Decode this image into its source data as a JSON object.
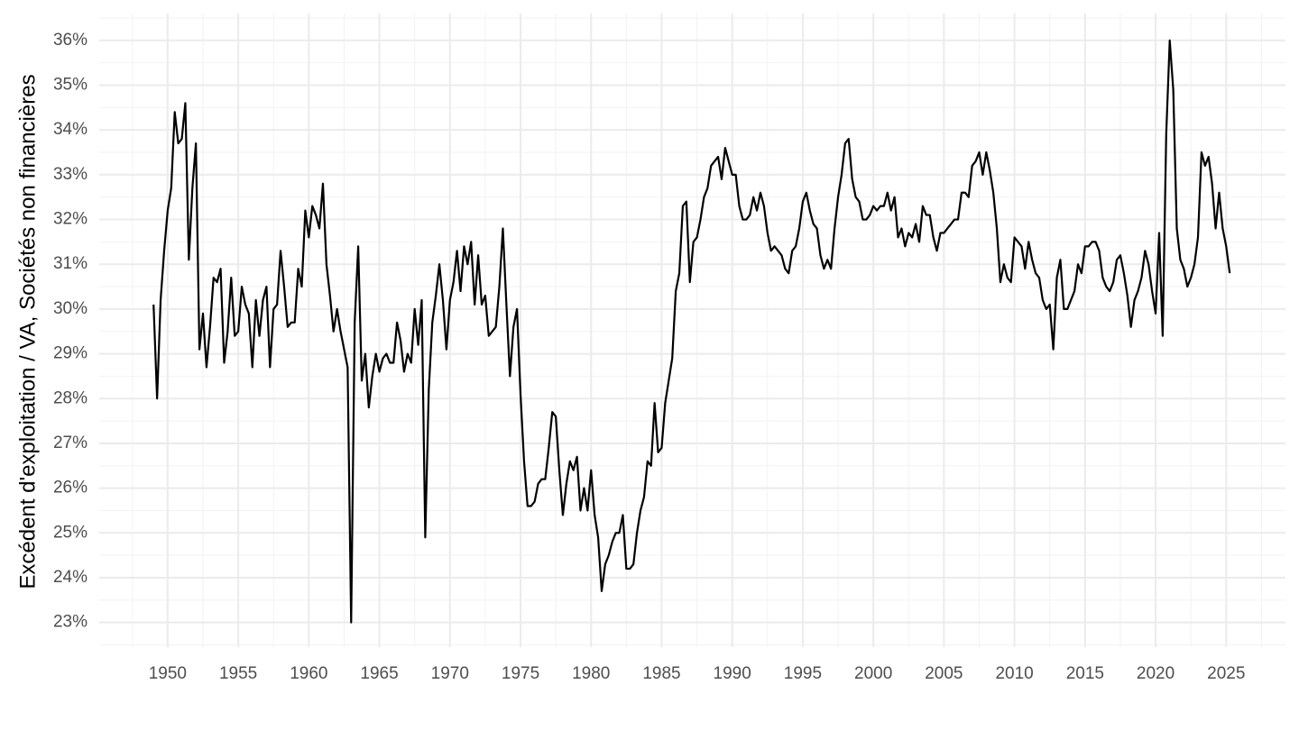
{
  "chart_data": {
    "type": "line",
    "ylabel": "Excédent d'exploitation / VA, Sociétés non financières",
    "x": [
      1949,
      1949.25,
      1949.5,
      1949.75,
      1950,
      1950.25,
      1950.5,
      1950.75,
      1951,
      1951.25,
      1951.5,
      1951.75,
      1952,
      1952.25,
      1952.5,
      1952.75,
      1953,
      1953.25,
      1953.5,
      1953.75,
      1954,
      1954.25,
      1954.5,
      1954.75,
      1955,
      1955.25,
      1955.5,
      1955.75,
      1956,
      1956.25,
      1956.5,
      1956.75,
      1957,
      1957.25,
      1957.5,
      1957.75,
      1958,
      1958.25,
      1958.5,
      1958.75,
      1959,
      1959.25,
      1959.5,
      1959.75,
      1960,
      1960.25,
      1960.5,
      1960.75,
      1961,
      1961.25,
      1961.5,
      1961.75,
      1962,
      1962.25,
      1962.5,
      1962.75,
      1963,
      1963.25,
      1963.5,
      1963.75,
      1964,
      1964.25,
      1964.5,
      1964.75,
      1965,
      1965.25,
      1965.5,
      1965.75,
      1966,
      1966.25,
      1966.5,
      1966.75,
      1967,
      1967.25,
      1967.5,
      1967.75,
      1968,
      1968.25,
      1968.5,
      1968.75,
      1969,
      1969.25,
      1969.5,
      1969.75,
      1970,
      1970.25,
      1970.5,
      1970.75,
      1971,
      1971.25,
      1971.5,
      1971.75,
      1972,
      1972.25,
      1972.5,
      1972.75,
      1973,
      1973.25,
      1973.5,
      1973.75,
      1974,
      1974.25,
      1974.5,
      1974.75,
      1975,
      1975.25,
      1975.5,
      1975.75,
      1976,
      1976.25,
      1976.5,
      1976.75,
      1977,
      1977.25,
      1977.5,
      1977.75,
      1978,
      1978.25,
      1978.5,
      1978.75,
      1979,
      1979.25,
      1979.5,
      1979.75,
      1980,
      1980.25,
      1980.5,
      1980.75,
      1981,
      1981.25,
      1981.5,
      1981.75,
      1982,
      1982.25,
      1982.5,
      1982.75,
      1983,
      1983.25,
      1983.5,
      1983.75,
      1984,
      1984.25,
      1984.5,
      1984.75,
      1985,
      1985.25,
      1985.5,
      1985.75,
      1986,
      1986.25,
      1986.5,
      1986.75,
      1987,
      1987.25,
      1987.5,
      1987.75,
      1988,
      1988.25,
      1988.5,
      1988.75,
      1989,
      1989.25,
      1989.5,
      1989.75,
      1990,
      1990.25,
      1990.5,
      1990.75,
      1991,
      1991.25,
      1991.5,
      1991.75,
      1992,
      1992.25,
      1992.5,
      1992.75,
      1993,
      1993.25,
      1993.5,
      1993.75,
      1994,
      1994.25,
      1994.5,
      1994.75,
      1995,
      1995.25,
      1995.5,
      1995.75,
      1996,
      1996.25,
      1996.5,
      1996.75,
      1997,
      1997.25,
      1997.5,
      1997.75,
      1998,
      1998.25,
      1998.5,
      1998.75,
      1999,
      1999.25,
      1999.5,
      1999.75,
      2000,
      2000.25,
      2000.5,
      2000.75,
      2001,
      2001.25,
      2001.5,
      2001.75,
      2002,
      2002.25,
      2002.5,
      2002.75,
      2003,
      2003.25,
      2003.5,
      2003.75,
      2004,
      2004.25,
      2004.5,
      2004.75,
      2005,
      2005.25,
      2005.5,
      2005.75,
      2006,
      2006.25,
      2006.5,
      2006.75,
      2007,
      2007.25,
      2007.5,
      2007.75,
      2008,
      2008.25,
      2008.5,
      2008.75,
      2009,
      2009.25,
      2009.5,
      2009.75,
      2010,
      2010.25,
      2010.5,
      2010.75,
      2011,
      2011.25,
      2011.5,
      2011.75,
      2012,
      2012.25,
      2012.5,
      2012.75,
      2013,
      2013.25,
      2013.5,
      2013.75,
      2014,
      2014.25,
      2014.5,
      2014.75,
      2015,
      2015.25,
      2015.5,
      2015.75,
      2016,
      2016.25,
      2016.5,
      2016.75,
      2017,
      2017.25,
      2017.5,
      2017.75,
      2018,
      2018.25,
      2018.5,
      2018.75,
      2019,
      2019.25,
      2019.5,
      2019.75,
      2020,
      2020.25,
      2020.5,
      2020.75,
      2021,
      2021.25,
      2021.5,
      2021.75,
      2022,
      2022.25,
      2022.5,
      2022.75,
      2023,
      2023.25,
      2023.5,
      2023.75,
      2024,
      2024.25,
      2024.5,
      2024.75,
      2025,
      2025.25
    ],
    "series": [
      {
        "color": "#000000",
        "values": [
          30.1,
          28.0,
          30.2,
          31.3,
          32.2,
          32.7,
          34.4,
          33.7,
          33.8,
          34.6,
          31.1,
          32.7,
          33.7,
          29.1,
          29.9,
          28.7,
          29.6,
          30.7,
          30.6,
          30.9,
          28.8,
          29.5,
          30.7,
          29.4,
          29.5,
          30.5,
          30.1,
          29.9,
          28.7,
          30.2,
          29.4,
          30.2,
          30.5,
          28.7,
          30.0,
          30.1,
          31.3,
          30.5,
          29.6,
          29.7,
          29.7,
          30.9,
          30.5,
          32.2,
          31.6,
          32.3,
          32.1,
          31.8,
          32.8,
          31.0,
          30.3,
          29.5,
          30.0,
          29.5,
          29.1,
          28.7,
          23.0,
          29.7,
          31.4,
          28.4,
          29.0,
          27.8,
          28.5,
          29.0,
          28.6,
          28.9,
          29.0,
          28.8,
          28.8,
          29.7,
          29.3,
          28.6,
          29.0,
          28.8,
          30.0,
          29.2,
          30.2,
          24.9,
          28.2,
          29.7,
          30.3,
          31.0,
          30.2,
          29.1,
          30.2,
          30.6,
          31.3,
          30.4,
          31.4,
          31.0,
          31.5,
          30.1,
          31.2,
          30.1,
          30.3,
          29.4,
          29.5,
          29.6,
          30.5,
          31.8,
          30.1,
          28.5,
          29.6,
          30.0,
          28.1,
          26.6,
          25.6,
          25.6,
          25.7,
          26.1,
          26.2,
          26.2,
          26.9,
          27.7,
          27.6,
          26.4,
          25.4,
          26.1,
          26.6,
          26.4,
          26.7,
          25.5,
          26.0,
          25.5,
          26.4,
          25.4,
          24.9,
          23.7,
          24.3,
          24.5,
          24.8,
          25.0,
          25.0,
          25.4,
          24.2,
          24.2,
          24.3,
          25.0,
          25.5,
          25.8,
          26.6,
          26.5,
          27.9,
          26.8,
          26.9,
          27.9,
          28.4,
          28.9,
          30.4,
          30.8,
          32.3,
          32.4,
          30.6,
          31.5,
          31.6,
          32.0,
          32.5,
          32.7,
          33.2,
          33.3,
          33.4,
          32.9,
          33.6,
          33.3,
          33.0,
          33.0,
          32.3,
          32.0,
          32.0,
          32.1,
          32.5,
          32.2,
          32.6,
          32.3,
          31.7,
          31.3,
          31.4,
          31.3,
          31.2,
          30.9,
          30.8,
          31.3,
          31.4,
          31.8,
          32.4,
          32.6,
          32.2,
          31.9,
          31.8,
          31.2,
          30.9,
          31.1,
          30.9,
          31.8,
          32.5,
          33.0,
          33.7,
          33.8,
          32.9,
          32.5,
          32.4,
          32.0,
          32.0,
          32.1,
          32.3,
          32.2,
          32.3,
          32.3,
          32.6,
          32.2,
          32.5,
          31.6,
          31.8,
          31.4,
          31.7,
          31.6,
          31.9,
          31.5,
          32.3,
          32.1,
          32.1,
          31.6,
          31.3,
          31.7,
          31.7,
          31.8,
          31.9,
          32.0,
          32.0,
          32.6,
          32.6,
          32.5,
          33.2,
          33.3,
          33.5,
          33.0,
          33.5,
          33.1,
          32.6,
          31.8,
          30.6,
          31.0,
          30.7,
          30.6,
          31.6,
          31.5,
          31.4,
          30.9,
          31.5,
          31.1,
          30.8,
          30.7,
          30.2,
          30.0,
          30.1,
          29.1,
          30.7,
          31.1,
          30.0,
          30.0,
          30.2,
          30.4,
          31.0,
          30.8,
          31.4,
          31.4,
          31.5,
          31.5,
          31.3,
          30.7,
          30.5,
          30.4,
          30.6,
          31.1,
          31.2,
          30.8,
          30.3,
          29.6,
          30.2,
          30.4,
          30.7,
          31.3,
          31.0,
          30.4,
          29.9,
          31.7,
          29.4,
          33.9,
          36.0,
          34.9,
          31.8,
          31.1,
          30.9,
          30.5,
          30.7,
          31.0,
          31.6,
          33.5,
          33.2,
          33.4,
          32.8,
          31.8,
          32.6,
          31.8,
          31.4,
          30.8
        ]
      }
    ],
    "xlim": [
      1945.15,
      2029.2
    ],
    "ylim": [
      22.45,
      36.6
    ],
    "xticks": [
      1950,
      1955,
      1960,
      1965,
      1970,
      1975,
      1980,
      1985,
      1990,
      1995,
      2000,
      2005,
      2010,
      2015,
      2020,
      2025
    ],
    "yticks": [
      {
        "value": 23,
        "label": "23%"
      },
      {
        "value": 24,
        "label": "24%"
      },
      {
        "value": 25,
        "label": "25%"
      },
      {
        "value": 26,
        "label": "26%"
      },
      {
        "value": 27,
        "label": "27%"
      },
      {
        "value": 28,
        "label": "28%"
      },
      {
        "value": 29,
        "label": "29%"
      },
      {
        "value": 30,
        "label": "30%"
      },
      {
        "value": 31,
        "label": "31%"
      },
      {
        "value": 32,
        "label": "32%"
      },
      {
        "value": 33,
        "label": "33%"
      },
      {
        "value": 34,
        "label": "34%"
      },
      {
        "value": 35,
        "label": "35%"
      },
      {
        "value": 36,
        "label": "36%"
      }
    ],
    "grid": true
  }
}
